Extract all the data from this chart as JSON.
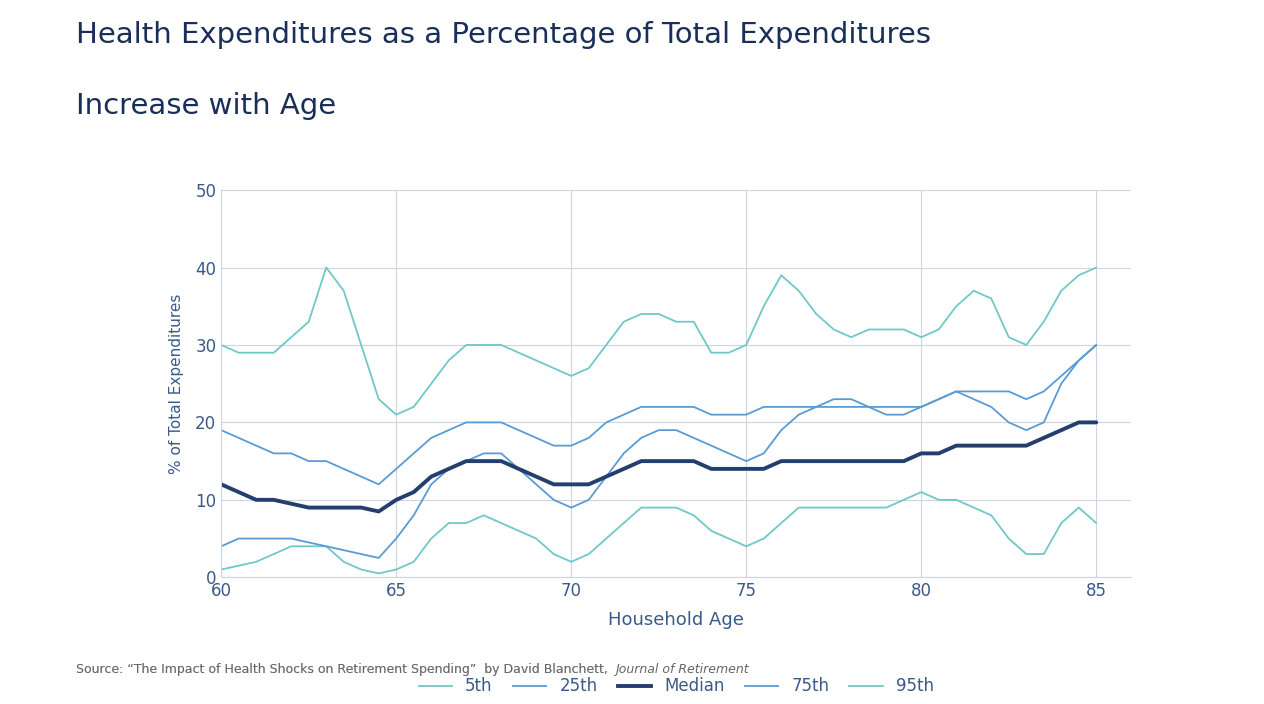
{
  "title_line1": "Health Expenditures as a Percentage of Total Expenditures",
  "title_line2": "Increase with Age",
  "xlabel": "Household Age",
  "ylabel": "% of Total Expenditures",
  "source_normal1": "Source: “The Impact of Health Shocks on Retirement Spending”",
  "source_normal2": "  by David Blanchett, ",
  "source_italic": "Journal of Retirement",
  "xlim": [
    60,
    86
  ],
  "ylim": [
    0,
    50
  ],
  "xticks": [
    60,
    65,
    70,
    75,
    80,
    85
  ],
  "yticks": [
    0,
    10,
    20,
    30,
    40,
    50
  ],
  "background_color": "#ffffff",
  "title_color": "#1a2e5a",
  "axis_label_color": "#3a5a8a",
  "tick_label_color": "#3a5a8a",
  "grid_color": "#ccd5e0",
  "series": {
    "5th": {
      "color": "#70c8c8",
      "lw": 1.3
    },
    "25th": {
      "color": "#5b9bd5",
      "lw": 1.3
    },
    "Median": {
      "color": "#243e6e",
      "lw": 2.8
    },
    "75th": {
      "color": "#5b9bd5",
      "lw": 1.3
    },
    "95th": {
      "color": "#70c8c8",
      "lw": 1.3
    }
  },
  "x": [
    60,
    60.5,
    61,
    61.5,
    62,
    62.5,
    63,
    63.5,
    64,
    64.5,
    65,
    65.5,
    66,
    66.5,
    67,
    67.5,
    68,
    68.5,
    69,
    69.5,
    70,
    70.5,
    71,
    71.5,
    72,
    72.5,
    73,
    73.5,
    74,
    74.5,
    75,
    75.5,
    76,
    76.5,
    77,
    77.5,
    78,
    78.5,
    79,
    79.5,
    80,
    80.5,
    81,
    81.5,
    82,
    82.5,
    83,
    83.5,
    84,
    84.5,
    85
  ],
  "y_5th": [
    1,
    1.5,
    2,
    3,
    4,
    4,
    4,
    2,
    1,
    0.5,
    1,
    2,
    5,
    7,
    7,
    8,
    7,
    6,
    5,
    3,
    2,
    3,
    5,
    7,
    9,
    9,
    9,
    8,
    6,
    5,
    4,
    5,
    7,
    9,
    9,
    9,
    9,
    9,
    9,
    10,
    11,
    10,
    10,
    9,
    8,
    5,
    3,
    3,
    7,
    9,
    7
  ],
  "y_25th": [
    4,
    5,
    5,
    5,
    5,
    4.5,
    4,
    3.5,
    3,
    2.5,
    5,
    8,
    12,
    14,
    15,
    16,
    16,
    14,
    12,
    10,
    9,
    10,
    13,
    16,
    18,
    19,
    19,
    18,
    17,
    16,
    15,
    16,
    19,
    21,
    22,
    23,
    23,
    22,
    21,
    21,
    22,
    23,
    24,
    23,
    22,
    20,
    19,
    20,
    25,
    28,
    30
  ],
  "y_median": [
    12,
    11,
    10,
    10,
    9.5,
    9,
    9,
    9,
    9,
    8.5,
    10,
    11,
    13,
    14,
    15,
    15,
    15,
    14,
    13,
    12,
    12,
    12,
    13,
    14,
    15,
    15,
    15,
    15,
    14,
    14,
    14,
    14,
    15,
    15,
    15,
    15,
    15,
    15,
    15,
    15,
    16,
    16,
    17,
    17,
    17,
    17,
    17,
    18,
    19,
    20,
    20
  ],
  "y_75th": [
    19,
    18,
    17,
    16,
    16,
    15,
    15,
    14,
    13,
    12,
    14,
    16,
    18,
    19,
    20,
    20,
    20,
    19,
    18,
    17,
    17,
    18,
    20,
    21,
    22,
    22,
    22,
    22,
    21,
    21,
    21,
    22,
    22,
    22,
    22,
    22,
    22,
    22,
    22,
    22,
    22,
    23,
    24,
    24,
    24,
    24,
    23,
    24,
    26,
    28,
    30
  ],
  "y_95th": [
    30,
    29,
    29,
    29,
    31,
    33,
    40,
    37,
    30,
    23,
    21,
    22,
    25,
    28,
    30,
    30,
    30,
    29,
    28,
    27,
    26,
    27,
    30,
    33,
    34,
    34,
    33,
    33,
    29,
    29,
    30,
    35,
    39,
    37,
    34,
    32,
    31,
    32,
    32,
    32,
    31,
    32,
    35,
    37,
    36,
    31,
    30,
    33,
    37,
    39,
    40
  ]
}
